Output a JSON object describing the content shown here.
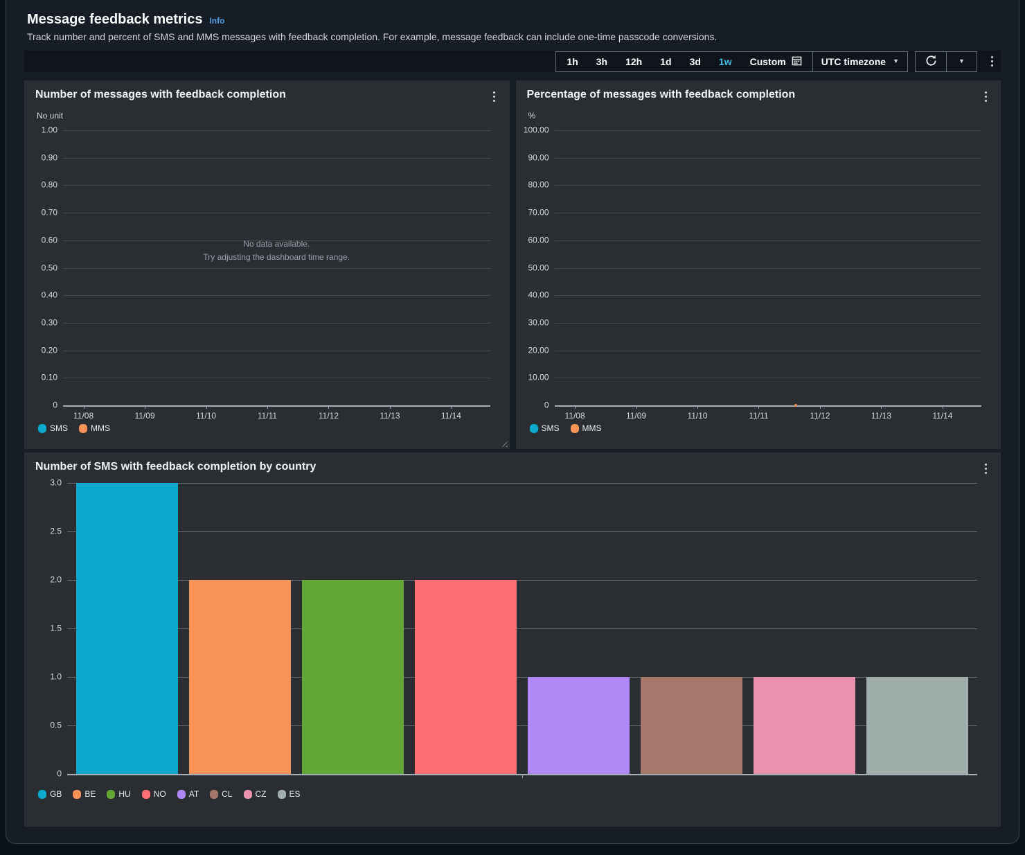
{
  "header": {
    "title": "Message feedback metrics",
    "info_link": "Info",
    "description": "Track number and percent of SMS and MMS messages with feedback completion. For example, message feedback can include one-time passcode conversions."
  },
  "toolbar": {
    "time_ranges": [
      "1h",
      "3h",
      "12h",
      "1d",
      "3d",
      "1w"
    ],
    "active_range": "1w",
    "custom_label": "Custom",
    "timezone": "UTC timezone",
    "icons": {
      "calendar": "calendar-icon",
      "refresh": "refresh-icon",
      "caret_down": "caret-down-icon",
      "kebab": "kebab-menu-icon"
    }
  },
  "colors": {
    "link": "#539fe5",
    "active_range": "#44bde8",
    "panel_bg": "#2a2e33",
    "page_bg": "#161d26",
    "sms": "#0ba9cc",
    "mms": "#f89256"
  },
  "chart_data": [
    {
      "type": "line",
      "title": "Number of messages with feedback completion",
      "unit_label": "No unit",
      "ylim": [
        0,
        1
      ],
      "yticks": [
        "1.00",
        "0.90",
        "0.80",
        "0.70",
        "0.60",
        "0.50",
        "0.40",
        "0.30",
        "0.20",
        "0.10",
        "0"
      ],
      "xticks": [
        "11/08",
        "11/09",
        "11/10",
        "11/11",
        "11/12",
        "11/13",
        "11/14"
      ],
      "grid": true,
      "legend_position": "bottom-left",
      "empty_message_line1": "No data available.",
      "empty_message_line2": "Try adjusting the dashboard time range.",
      "series": [
        {
          "name": "SMS",
          "color": "#0ba9cc",
          "values": []
        },
        {
          "name": "MMS",
          "color": "#f89256",
          "values": []
        }
      ]
    },
    {
      "type": "line",
      "title": "Percentage of messages with feedback completion",
      "unit_label": "%",
      "ylim": [
        0,
        100
      ],
      "yticks": [
        "100.00",
        "90.00",
        "80.00",
        "70.00",
        "60.00",
        "50.00",
        "40.00",
        "30.00",
        "20.00",
        "10.00",
        "0"
      ],
      "xticks": [
        "11/08",
        "11/09",
        "11/10",
        "11/11",
        "11/12",
        "11/13",
        "11/14"
      ],
      "grid": true,
      "legend_position": "bottom-left",
      "series": [
        {
          "name": "SMS",
          "color": "#0ba9cc",
          "values": []
        },
        {
          "name": "MMS",
          "color": "#f89256",
          "values": [
            {
              "x_fraction": 0.566,
              "y": 0
            }
          ]
        }
      ]
    },
    {
      "type": "bar",
      "title": "Number of SMS with feedback completion by country",
      "categories": [
        "GB",
        "BE",
        "HU",
        "NO",
        "AT",
        "CL",
        "CZ",
        "ES"
      ],
      "values": [
        3,
        2,
        2,
        2,
        1,
        1,
        1,
        1
      ],
      "colors": [
        "#0ba9cc",
        "#f89256",
        "#61a636",
        "#fe6e73",
        "#b089f6",
        "#a5786c",
        "#e992ad",
        "#a0aeab"
      ],
      "ylim": [
        0,
        3
      ],
      "yticks": [
        "3.0",
        "2.5",
        "2.0",
        "1.5",
        "1.0",
        "0.5",
        "0"
      ],
      "grid": true,
      "legend_position": "bottom-left"
    }
  ]
}
